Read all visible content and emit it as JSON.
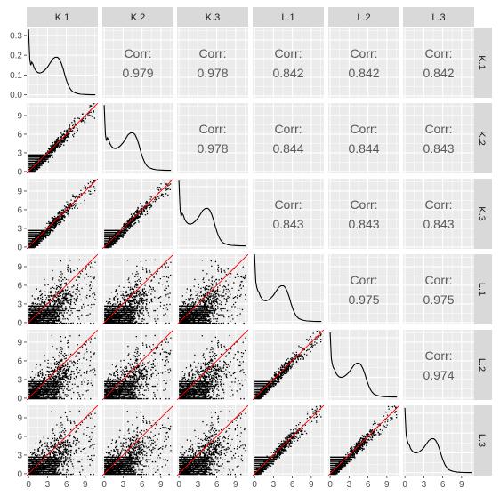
{
  "chart_data": {
    "type": "scatter-matrix",
    "variables": [
      "K.1",
      "K.2",
      "K.3",
      "L.1",
      "L.2",
      "L.3"
    ],
    "correlation_label": "Corr:",
    "correlations": [
      [
        "",
        "0.979",
        "0.978",
        "0.842",
        "0.842",
        "0.842"
      ],
      [
        "",
        "",
        "0.978",
        "0.844",
        "0.844",
        "0.843"
      ],
      [
        "",
        "",
        "",
        "0.843",
        "0.843",
        "0.843"
      ],
      [
        "",
        "",
        "",
        "",
        "0.975",
        "0.975"
      ],
      [
        "",
        "",
        "",
        "",
        "",
        "0.974"
      ],
      [
        "",
        "",
        "",
        "",
        "",
        ""
      ]
    ],
    "x_ticks": [
      "0",
      "3",
      "6",
      "9"
    ],
    "x_tick_values": [
      0,
      3,
      6,
      9
    ],
    "xlim": [
      -0.3,
      11
    ],
    "density_y_ticks": [
      "0.0",
      "0.1",
      "0.2",
      "0.3"
    ],
    "density_y_tick_values": [
      0,
      0.1,
      0.2,
      0.3
    ],
    "density_ylim": [
      -0.015,
      0.34
    ],
    "scatter_y_ticks": [
      "0",
      "3",
      "6",
      "9"
    ],
    "scatter_y_tick_values": [
      0,
      3,
      6,
      9
    ],
    "scatter_ylim": [
      -0.3,
      11
    ],
    "grid": true,
    "reference_line_color": "#ff0000",
    "point_color": "#000000",
    "strip_color": "#d9d9d9",
    "panel_color": "#ebebeb",
    "density_curve": {
      "x": [
        0,
        0.1,
        0.2,
        0.35,
        0.5,
        0.7,
        0.9,
        1.2,
        1.5,
        1.8,
        2.2,
        2.6,
        3.0,
        3.4,
        3.8,
        4.2,
        4.6,
        4.9,
        5.2,
        5.5,
        5.8,
        6.1,
        6.4,
        6.7,
        7.0,
        7.4,
        7.8,
        8.3,
        8.8,
        9.4,
        10.0,
        10.6
      ],
      "y": [
        0.33,
        0.25,
        0.18,
        0.15,
        0.165,
        0.155,
        0.135,
        0.12,
        0.112,
        0.11,
        0.115,
        0.125,
        0.14,
        0.16,
        0.18,
        0.19,
        0.19,
        0.18,
        0.16,
        0.13,
        0.095,
        0.065,
        0.042,
        0.026,
        0.016,
        0.01,
        0.006,
        0.003,
        0.002,
        0.001,
        0.0005,
        0.0003
      ]
    }
  }
}
